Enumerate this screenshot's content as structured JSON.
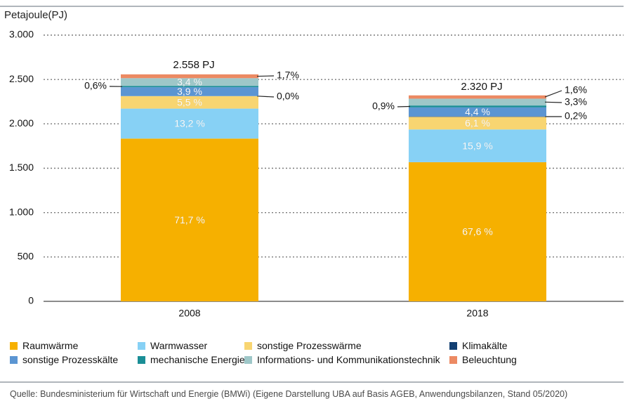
{
  "chart_data": {
    "type": "bar",
    "stacked": true,
    "ylabel": "Petajoule(PJ)",
    "ylim": [
      0,
      3000
    ],
    "y_ticks": [
      0,
      500,
      1000,
      1500,
      2000,
      2500,
      3000
    ],
    "y_tick_labels": [
      "0",
      "500",
      "1.000",
      "1.500",
      "2.000",
      "2.500",
      "3.000"
    ],
    "grid": true,
    "legend_position": "bottom",
    "categories": [
      "2008",
      "2018"
    ],
    "totals": [
      2558,
      2320
    ],
    "total_labels": [
      "2.558 PJ",
      "2.320 PJ"
    ],
    "series": [
      {
        "name": "Raumwärme",
        "color": "#f6b000",
        "values": [
          1834,
          1568
        ],
        "labels": [
          "71,7 %",
          "67,6 %"
        ],
        "label_color": "#ffffff"
      },
      {
        "name": "Warmwasser",
        "color": "#87d1f5",
        "values": [
          338,
          369
        ],
        "labels": [
          "13,2 %",
          "15,9 %"
        ],
        "label_color": "#ffffff"
      },
      {
        "name": "sonstige Prozesswärme",
        "color": "#f8d571",
        "values": [
          141,
          142
        ],
        "labels": [
          "5,5 %",
          "6,1 %"
        ],
        "label_color": "#ffffff"
      },
      {
        "name": "Klimakälte",
        "color": "#123f72",
        "values": [
          0,
          5
        ],
        "labels": [
          "0,0%",
          "0,2%"
        ],
        "label_color": "#111111"
      },
      {
        "name": "sonstige Prozesskälte",
        "color": "#5b95d2",
        "values": [
          100,
          102
        ],
        "labels": [
          "3,9 %",
          "4,4 %"
        ],
        "label_color": "#ffffff"
      },
      {
        "name": "mechanische Energie",
        "color": "#1a8e96",
        "values": [
          15,
          21
        ],
        "labels": [
          "0,6%",
          "0,9%"
        ],
        "label_color": "#111111"
      },
      {
        "name": "Informations- und Kommunikationstechnik",
        "color": "#9ec7c8",
        "values": [
          87,
          77
        ],
        "labels": [
          "3,4 %",
          "3,3%"
        ],
        "label_color": "#ffffff"
      },
      {
        "name": "Beleuchtung",
        "color": "#ec8a63",
        "values": [
          43,
          37
        ],
        "labels": [
          "1,7%",
          "1,6%"
        ],
        "label_color": "#111111"
      }
    ]
  },
  "source": "Quelle: Bundesministerium für Wirtschaft und Energie (BMWi) (Eigene Darstellung UBA auf Basis AGEB, Anwendungsbilanzen, Stand 05/2020)"
}
